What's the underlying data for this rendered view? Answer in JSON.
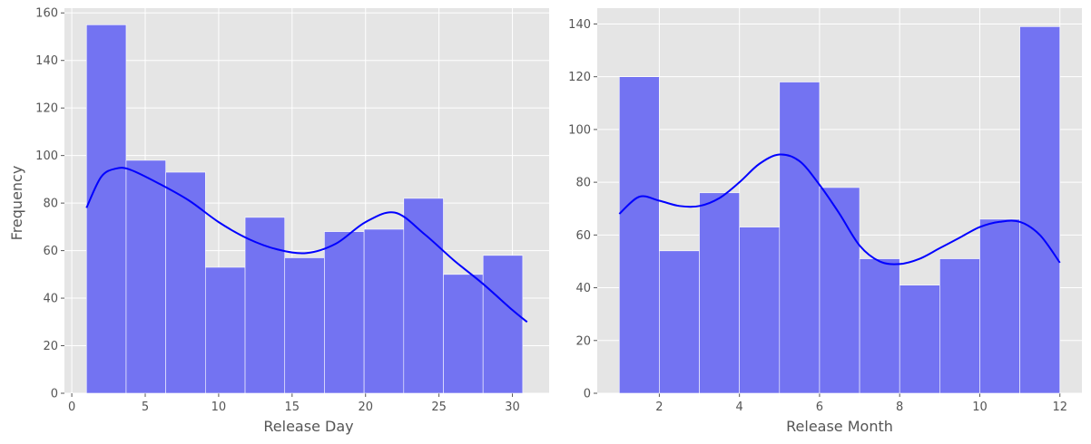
{
  "chart_data": [
    {
      "type": "bar",
      "subtype": "histogram-with-kde",
      "xlabel": "Release Day",
      "ylabel": "Frequency",
      "xlim": [
        -0.5,
        32.5
      ],
      "ylim": [
        0,
        162
      ],
      "xticks": [
        0,
        5,
        10,
        15,
        20,
        25,
        30
      ],
      "yticks": [
        0,
        20,
        40,
        60,
        80,
        100,
        120,
        140,
        160
      ],
      "bins": [
        {
          "x0": 1,
          "x1": 3.7,
          "value": 155
        },
        {
          "x0": 3.7,
          "x1": 6.4,
          "value": 98
        },
        {
          "x0": 6.4,
          "x1": 9.1,
          "value": 93
        },
        {
          "x0": 9.1,
          "x1": 11.8,
          "value": 53
        },
        {
          "x0": 11.8,
          "x1": 14.5,
          "value": 74
        },
        {
          "x0": 14.5,
          "x1": 17.2,
          "value": 57
        },
        {
          "x0": 17.2,
          "x1": 19.9,
          "value": 68
        },
        {
          "x0": 19.9,
          "x1": 22.6,
          "value": 69
        },
        {
          "x0": 22.6,
          "x1": 25.3,
          "value": 82
        },
        {
          "x0": 25.3,
          "x1": 28.0,
          "value": 50
        },
        {
          "x0": 28.0,
          "x1": 30.7,
          "value": 58
        }
      ],
      "kde": {
        "x": [
          1,
          2,
          3,
          4,
          6,
          8,
          10,
          12,
          14,
          16,
          18,
          20,
          22,
          24,
          26,
          28,
          30,
          31
        ],
        "y": [
          78,
          91,
          94.5,
          94,
          88,
          81,
          72,
          65,
          60.5,
          59,
          63,
          72,
          76,
          67,
          56,
          46,
          35,
          30
        ]
      },
      "grid": true,
      "bar_color": "#7373f2",
      "line_color": "#0000ff",
      "background": "#e5e5e5"
    },
    {
      "type": "bar",
      "subtype": "histogram-with-kde",
      "xlabel": "Release Month",
      "ylabel": "",
      "xlim": [
        0.45,
        12.55
      ],
      "ylim": [
        0,
        146
      ],
      "xticks": [
        2,
        4,
        6,
        8,
        10,
        12
      ],
      "yticks": [
        0,
        20,
        40,
        60,
        80,
        100,
        120,
        140
      ],
      "bins": [
        {
          "x0": 1,
          "x1": 2,
          "value": 120
        },
        {
          "x0": 2,
          "x1": 3,
          "value": 54
        },
        {
          "x0": 3,
          "x1": 4,
          "value": 76
        },
        {
          "x0": 4,
          "x1": 5,
          "value": 63
        },
        {
          "x0": 5,
          "x1": 6,
          "value": 118
        },
        {
          "x0": 6,
          "x1": 7,
          "value": 78
        },
        {
          "x0": 7,
          "x1": 8,
          "value": 51
        },
        {
          "x0": 8,
          "x1": 9,
          "value": 41
        },
        {
          "x0": 9,
          "x1": 10,
          "value": 51
        },
        {
          "x0": 10,
          "x1": 11,
          "value": 66
        },
        {
          "x0": 11,
          "x1": 12,
          "value": 139
        }
      ],
      "kde": {
        "x": [
          1,
          1.5,
          2,
          2.5,
          3,
          3.5,
          4,
          4.5,
          5,
          5.5,
          6,
          6.5,
          7,
          7.5,
          8,
          8.5,
          9,
          9.5,
          10,
          10.5,
          11,
          11.5,
          12
        ],
        "y": [
          68,
          74.5,
          73,
          71,
          71,
          74,
          80,
          87,
          90.5,
          88,
          79,
          68,
          56,
          50,
          49,
          51,
          55,
          59,
          63,
          65,
          65,
          60,
          49.5
        ]
      },
      "grid": true,
      "bar_color": "#7373f2",
      "line_color": "#0000ff",
      "background": "#e5e5e5"
    }
  ]
}
